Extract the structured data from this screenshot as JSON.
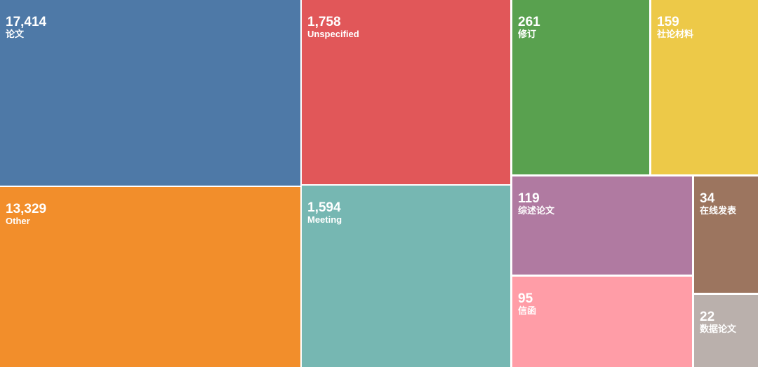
{
  "chart_data": {
    "type": "treemap",
    "categories": [
      "论文",
      "Other",
      "Unspecified",
      "Meeting",
      "修订",
      "社论材料",
      "综述论文",
      "信函",
      "在线发表",
      "数据论文"
    ],
    "values": [
      17414,
      13329,
      1758,
      1594,
      261,
      159,
      119,
      95,
      34,
      22
    ],
    "value_labels": [
      "17,414",
      "13,329",
      "1,758",
      "1,594",
      "261",
      "159",
      "119",
      "95",
      "34",
      "22"
    ],
    "colors": [
      "#4e79a7",
      "#f28e2b",
      "#e15759",
      "#76b7b2",
      "#59a14f",
      "#edc948",
      "#b07aa1",
      "#ff9da7",
      "#9c755f",
      "#bab0ac"
    ]
  }
}
